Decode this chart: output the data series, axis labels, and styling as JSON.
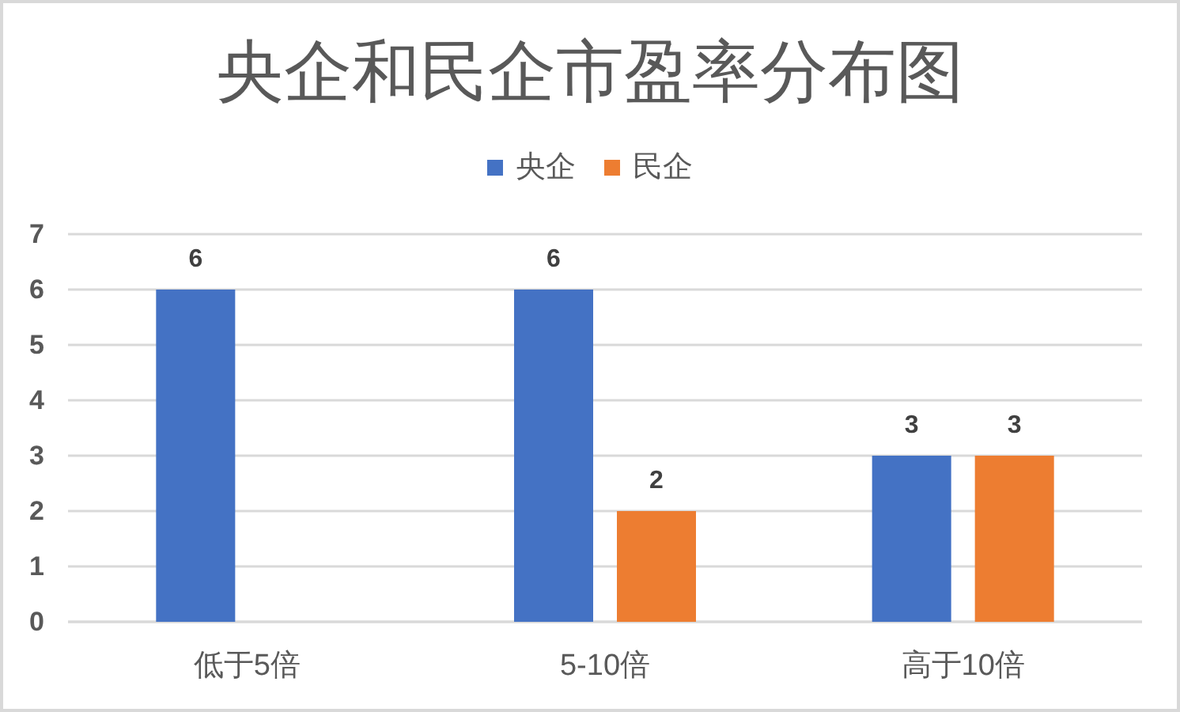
{
  "chart_data": {
    "type": "bar",
    "title": "央企和民企市盈率分布图",
    "categories": [
      "低于5倍",
      "5-10倍",
      "高于10倍"
    ],
    "series": [
      {
        "name": "央企",
        "color": "#4472c4",
        "values": [
          6,
          6,
          3
        ]
      },
      {
        "name": "民企",
        "color": "#ed7d31",
        "values": [
          null,
          2,
          3
        ]
      }
    ],
    "ylim": [
      0,
      7
    ],
    "yticks": [
      0,
      1,
      2,
      3,
      4,
      5,
      6,
      7
    ],
    "grid": "y",
    "legend": "top",
    "data_labels": true
  }
}
